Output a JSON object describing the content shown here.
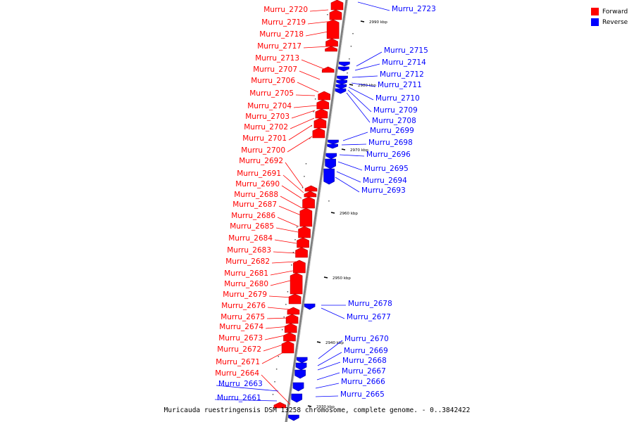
{
  "colors": {
    "forward": "#ff0000",
    "reverse": "#0000ff",
    "backbone": "#808080"
  },
  "legend": {
    "forward_label": "Forward",
    "reverse_label": "Reverse"
  },
  "caption": "Muricauda ruestringensis DSM 13258 chromosome, complete genome. - 0..3842422",
  "ticks": [
    "2990 kbp",
    "2980 kbp",
    "2970 kbp",
    "2960 kbp",
    "2950 kbp",
    "2940 kbp",
    "2930 kbp"
  ],
  "forward_genes": [
    "Murru_2720",
    "Murru_2719",
    "Murru_2718",
    "Murru_2717",
    "Murru_2713",
    "Murru_2707",
    "Murru_2706",
    "Murru_2705",
    "Murru_2704",
    "Murru_2703",
    "Murru_2702",
    "Murru_2701",
    "Murru_2700",
    "Murru_2692",
    "Murru_2691",
    "Murru_2690",
    "Murru_2688",
    "Murru_2687",
    "Murru_2686",
    "Murru_2685",
    "Murru_2684",
    "Murru_2683",
    "Murru_2682",
    "Murru_2681",
    "Murru_2680",
    "Murru_2679",
    "Murru_2676",
    "Murru_2675",
    "Murru_2674",
    "Murru_2673",
    "Murru_2672",
    "Murru_2671",
    "Murru_2664"
  ],
  "reverse_genes": [
    "Murru_2723",
    "Murru_2715",
    "Murru_2714",
    "Murru_2712",
    "Murru_2711",
    "Murru_2710",
    "Murru_2709",
    "Murru_2708",
    "Murru_2699",
    "Murru_2698",
    "Murru_2696",
    "Murru_2695",
    "Murru_2694",
    "Murru_2693",
    "Murru_2678",
    "Murru_2677",
    "Murru_2670",
    "Murru_2669",
    "Murru_2668",
    "Murru_2667",
    "Murru_2666",
    "Murru_2665",
    "Murru_2663",
    "Murru_2661"
  ]
}
